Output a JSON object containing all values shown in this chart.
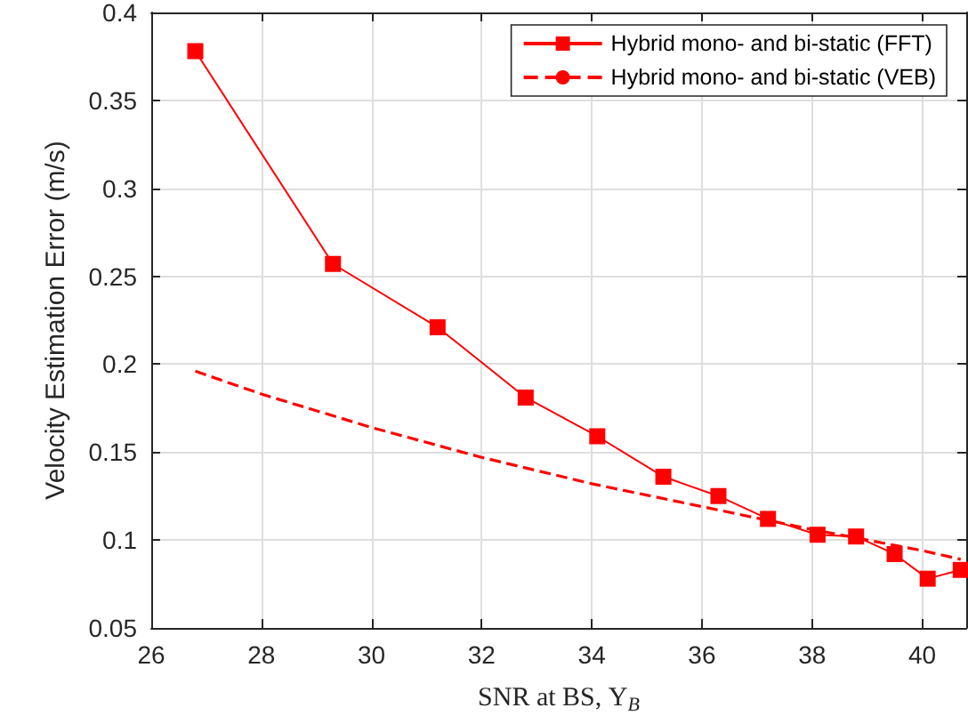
{
  "chart_data": {
    "type": "line",
    "xlabel": "SNR at BS, Υ$_{B}$",
    "ylabel": "Velocity Estimation Error (m/s)",
    "xlim": [
      26,
      40.8
    ],
    "xticks": [
      26,
      28,
      30,
      32,
      34,
      36,
      38,
      40
    ],
    "ylim": [
      0.05,
      0.4
    ],
    "yticks": [
      0.05,
      0.1,
      0.15,
      0.2,
      0.25,
      0.3,
      0.35,
      0.4
    ],
    "grid": true,
    "legend": "top right",
    "series": [
      {
        "name": "Hybrid mono- and bi-static (FFT)",
        "color": "#ff0000",
        "marker": "square",
        "line_style": "solid",
        "x": [
          26.8,
          29.3,
          31.2,
          32.8,
          34.1,
          35.3,
          36.3,
          37.2,
          38.1,
          38.8,
          39.5,
          40.1,
          40.7
        ],
        "values": [
          0.378,
          0.257,
          0.221,
          0.181,
          0.159,
          0.136,
          0.125,
          0.112,
          0.103,
          0.102,
          0.092,
          0.078,
          0.083
        ]
      },
      {
        "name": "Hybrid mono- and bi-static (VEB)",
        "color": "#ff0000",
        "marker": "none",
        "line_style": "dashed",
        "x": [
          26.8,
          28,
          30,
          32,
          34,
          36,
          38,
          40,
          40.7
        ],
        "values": [
          0.196,
          0.183,
          0.164,
          0.147,
          0.132,
          0.119,
          0.106,
          0.094,
          0.089
        ]
      }
    ]
  }
}
